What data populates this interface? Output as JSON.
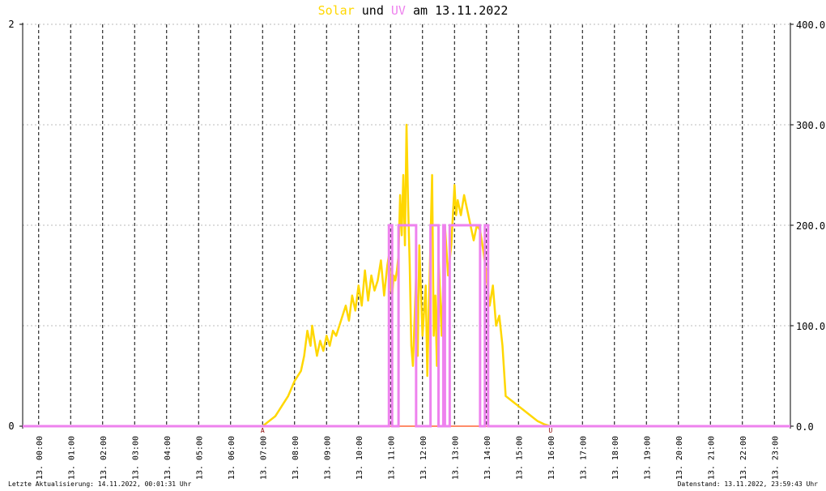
{
  "title": {
    "solar": "Solar",
    "und": "und",
    "uv": "UV",
    "rest": "am 13.11.2022"
  },
  "footer": {
    "last_update": "Letzte Aktualisierung: 14.11.2022, 00:01:31 Uhr",
    "data_status": "Datenstand: 13.11.2022, 23:59:43 Uhr"
  },
  "colors": {
    "solar": "#ffd700",
    "uv": "#ee82ee",
    "baseline": "#ff8c69",
    "marker": "#8b0000",
    "grid": "#000000"
  },
  "chart_data": {
    "type": "line",
    "x_ticks": [
      "13. 00:00",
      "13. 01:00",
      "13. 02:00",
      "13. 03:00",
      "13. 04:00",
      "13. 05:00",
      "13. 06:00",
      "13. 07:00",
      "13. 08:00",
      "13. 09:00",
      "13. 10:00",
      "13. 11:00",
      "13. 12:00",
      "13. 13:00",
      "13. 14:00",
      "13. 15:00",
      "13. 16:00",
      "13. 17:00",
      "13. 18:00",
      "13. 19:00",
      "13. 20:00",
      "13. 21:00",
      "13. 22:00",
      "13. 23:00"
    ],
    "xlim_hours": [
      0,
      24
    ],
    "y_left": {
      "ticks": [
        "0",
        "2"
      ],
      "ylim": [
        0,
        2
      ]
    },
    "y_right": {
      "ticks": [
        "0.0",
        "100.0",
        "200.0",
        "300.0",
        "400.0"
      ],
      "ylim": [
        0,
        400
      ]
    },
    "markers": [
      {
        "label": "A",
        "hour": 7.5
      },
      {
        "label": "U",
        "hour": 16.5
      }
    ],
    "series": [
      {
        "name": "Solar",
        "axis": "right",
        "x_hours": [
          0,
          7.5,
          7.7,
          7.9,
          8.1,
          8.3,
          8.5,
          8.7,
          8.8,
          8.9,
          9.0,
          9.05,
          9.1,
          9.2,
          9.3,
          9.4,
          9.5,
          9.6,
          9.7,
          9.8,
          9.9,
          10.0,
          10.1,
          10.2,
          10.3,
          10.4,
          10.5,
          10.6,
          10.7,
          10.8,
          10.9,
          11.0,
          11.1,
          11.2,
          11.3,
          11.4,
          11.45,
          11.5,
          11.55,
          11.6,
          11.65,
          11.7,
          11.75,
          11.8,
          11.85,
          11.9,
          11.95,
          12.0,
          12.05,
          12.1,
          12.15,
          12.2,
          12.3,
          12.35,
          12.4,
          12.5,
          12.6,
          12.65,
          12.7,
          12.8,
          12.85,
          12.9,
          12.95,
          13.0,
          13.1,
          13.2,
          13.3,
          13.4,
          13.5,
          13.55,
          13.6,
          13.7,
          13.8,
          13.9,
          14.0,
          14.1,
          14.2,
          14.3,
          14.4,
          14.5,
          14.6,
          14.7,
          14.8,
          14.9,
          15.0,
          15.1,
          15.3,
          15.5,
          15.7,
          15.9,
          16.1,
          16.3,
          16.5,
          16.6,
          24
        ],
        "values": [
          0,
          0,
          5,
          10,
          20,
          30,
          45,
          55,
          70,
          95,
          80,
          100,
          90,
          70,
          85,
          75,
          90,
          80,
          95,
          90,
          100,
          110,
          120,
          105,
          130,
          115,
          140,
          120,
          155,
          125,
          150,
          135,
          145,
          165,
          130,
          160,
          170,
          140,
          130,
          150,
          145,
          155,
          170,
          230,
          190,
          250,
          180,
          300,
          220,
          160,
          80,
          60,
          150,
          70,
          180,
          90,
          140,
          50,
          120,
          250,
          90,
          130,
          60,
          170,
          90,
          200,
          150,
          180,
          240,
          210,
          225,
          210,
          230,
          215,
          200,
          185,
          200,
          195,
          175,
          150,
          120,
          140,
          100,
          110,
          80,
          30,
          25,
          20,
          15,
          10,
          5,
          2,
          0,
          0,
          0
        ]
      },
      {
        "name": "UV",
        "axis": "left",
        "segments_hours": [
          [
            11.45,
            11.55
          ],
          [
            11.75,
            12.3
          ],
          [
            12.75,
            13.0
          ],
          [
            13.15,
            13.2
          ],
          [
            13.35,
            14.3
          ],
          [
            14.45,
            14.55
          ]
        ],
        "high_value": 1,
        "low_value": 0
      }
    ]
  }
}
